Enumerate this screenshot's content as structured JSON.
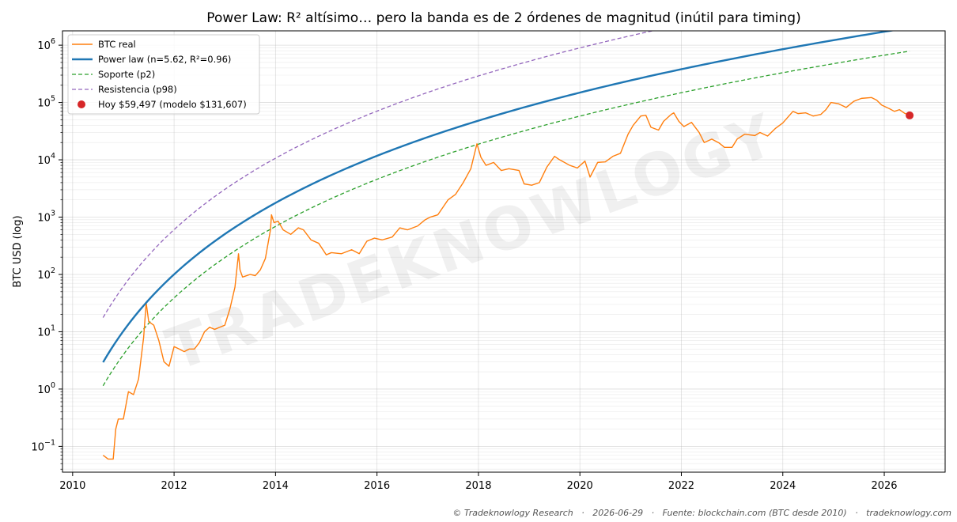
{
  "chart_data": {
    "type": "line",
    "title": "Power Law: R² altísimo… pero la banda es de 2 órdenes de magnitud (inútil para timing)",
    "xlabel": "",
    "ylabel": "BTC USD (log)",
    "xlim": [
      2009.8,
      2027.2
    ],
    "ylim_log10": [
      -1.45,
      6.25
    ],
    "y_scale": "log",
    "x_ticks": [
      2010,
      2012,
      2014,
      2016,
      2018,
      2020,
      2022,
      2024,
      2026
    ],
    "y_ticks": [
      {
        "exp": -1,
        "label": "−1"
      },
      {
        "exp": 0,
        "label": "0"
      },
      {
        "exp": 1,
        "label": "1"
      },
      {
        "exp": 2,
        "label": "2"
      },
      {
        "exp": 3,
        "label": "3"
      },
      {
        "exp": 4,
        "label": "4"
      },
      {
        "exp": 5,
        "label": "5"
      },
      {
        "exp": 6,
        "label": "6"
      }
    ],
    "y_tick_base": "10",
    "grid": true,
    "legend_position": "top-left",
    "power_law": {
      "intercept_log10": -0.68,
      "x_start": 2010.6,
      "x_end": 2026.5
    },
    "series": [
      {
        "name": "BTC real",
        "color": "#ff7f0e",
        "style": "solid",
        "points": [
          [
            2010.6,
            0.07
          ],
          [
            2010.7,
            0.06
          ],
          [
            2010.8,
            0.06
          ],
          [
            2010.85,
            0.2
          ],
          [
            2010.9,
            0.3
          ],
          [
            2011.0,
            0.3
          ],
          [
            2011.1,
            0.9
          ],
          [
            2011.2,
            0.8
          ],
          [
            2011.3,
            1.5
          ],
          [
            2011.4,
            8
          ],
          [
            2011.45,
            32
          ],
          [
            2011.5,
            15
          ],
          [
            2011.6,
            13
          ],
          [
            2011.7,
            7
          ],
          [
            2011.8,
            3
          ],
          [
            2011.9,
            2.5
          ],
          [
            2012.0,
            5.5
          ],
          [
            2012.1,
            5
          ],
          [
            2012.2,
            4.5
          ],
          [
            2012.3,
            5
          ],
          [
            2012.4,
            5
          ],
          [
            2012.5,
            6.5
          ],
          [
            2012.6,
            10
          ],
          [
            2012.7,
            12
          ],
          [
            2012.8,
            11
          ],
          [
            2012.9,
            12
          ],
          [
            2013.0,
            13
          ],
          [
            2013.1,
            25
          ],
          [
            2013.2,
            60
          ],
          [
            2013.27,
            230
          ],
          [
            2013.3,
            120
          ],
          [
            2013.35,
            90
          ],
          [
            2013.5,
            100
          ],
          [
            2013.6,
            95
          ],
          [
            2013.7,
            120
          ],
          [
            2013.8,
            190
          ],
          [
            2013.9,
            600
          ],
          [
            2013.92,
            1100
          ],
          [
            2013.97,
            800
          ],
          [
            2014.05,
            850
          ],
          [
            2014.15,
            600
          ],
          [
            2014.3,
            500
          ],
          [
            2014.45,
            650
          ],
          [
            2014.55,
            600
          ],
          [
            2014.7,
            400
          ],
          [
            2014.85,
            350
          ],
          [
            2015.0,
            220
          ],
          [
            2015.1,
            240
          ],
          [
            2015.3,
            230
          ],
          [
            2015.5,
            270
          ],
          [
            2015.65,
            230
          ],
          [
            2015.8,
            380
          ],
          [
            2015.95,
            430
          ],
          [
            2016.1,
            400
          ],
          [
            2016.3,
            450
          ],
          [
            2016.45,
            650
          ],
          [
            2016.6,
            600
          ],
          [
            2016.8,
            700
          ],
          [
            2016.95,
            900
          ],
          [
            2017.05,
            1000
          ],
          [
            2017.2,
            1100
          ],
          [
            2017.4,
            2000
          ],
          [
            2017.55,
            2500
          ],
          [
            2017.7,
            4000
          ],
          [
            2017.85,
            7000
          ],
          [
            2017.97,
            19000
          ],
          [
            2018.05,
            11000
          ],
          [
            2018.15,
            8000
          ],
          [
            2018.3,
            9000
          ],
          [
            2018.45,
            6500
          ],
          [
            2018.6,
            7000
          ],
          [
            2018.8,
            6500
          ],
          [
            2018.9,
            3800
          ],
          [
            2019.05,
            3600
          ],
          [
            2019.2,
            4000
          ],
          [
            2019.35,
            7500
          ],
          [
            2019.5,
            11500
          ],
          [
            2019.6,
            10000
          ],
          [
            2019.8,
            8000
          ],
          [
            2019.95,
            7200
          ],
          [
            2020.1,
            9500
          ],
          [
            2020.2,
            5000
          ],
          [
            2020.35,
            9000
          ],
          [
            2020.5,
            9200
          ],
          [
            2020.65,
            11500
          ],
          [
            2020.8,
            13000
          ],
          [
            2020.95,
            28000
          ],
          [
            2021.05,
            40000
          ],
          [
            2021.2,
            58000
          ],
          [
            2021.3,
            60000
          ],
          [
            2021.4,
            37000
          ],
          [
            2021.55,
            33000
          ],
          [
            2021.65,
            47000
          ],
          [
            2021.8,
            62000
          ],
          [
            2021.85,
            66000
          ],
          [
            2021.95,
            47000
          ],
          [
            2022.05,
            38000
          ],
          [
            2022.2,
            45000
          ],
          [
            2022.35,
            30000
          ],
          [
            2022.45,
            20000
          ],
          [
            2022.6,
            23000
          ],
          [
            2022.75,
            19500
          ],
          [
            2022.85,
            16500
          ],
          [
            2023.0,
            16500
          ],
          [
            2023.1,
            23000
          ],
          [
            2023.25,
            28000
          ],
          [
            2023.45,
            26500
          ],
          [
            2023.55,
            30000
          ],
          [
            2023.7,
            26000
          ],
          [
            2023.85,
            35000
          ],
          [
            2024.0,
            44000
          ],
          [
            2024.2,
            70000
          ],
          [
            2024.3,
            64000
          ],
          [
            2024.45,
            66000
          ],
          [
            2024.6,
            58000
          ],
          [
            2024.75,
            62000
          ],
          [
            2024.85,
            75000
          ],
          [
            2024.95,
            100000
          ],
          [
            2025.1,
            95000
          ],
          [
            2025.25,
            82000
          ],
          [
            2025.4,
            105000
          ],
          [
            2025.55,
            118000
          ],
          [
            2025.75,
            122000
          ],
          [
            2025.85,
            110000
          ],
          [
            2025.95,
            90000
          ],
          [
            2026.1,
            78000
          ],
          [
            2026.2,
            70000
          ],
          [
            2026.3,
            75000
          ],
          [
            2026.4,
            65000
          ],
          [
            2026.5,
            59497
          ]
        ]
      },
      {
        "name": "Power law (n=5.62, R²=0.96)",
        "color": "#1f77b4",
        "style": "solid",
        "exponent": 5.62
      },
      {
        "name": "Soporte (p2)",
        "color": "#2ca02c",
        "style": "dashed",
        "offset_log10": -0.41
      },
      {
        "name": "Resistencia (p98)",
        "color": "#9467bd",
        "style": "dashed",
        "offset_log10": 0.78
      }
    ],
    "today_marker": {
      "label": "Hoy $59,497 (modelo $131,607)",
      "x": 2026.5,
      "y": 59497,
      "model": 131607,
      "color": "#d62728"
    }
  },
  "watermark": "TRADEKNOWLOGY",
  "footer": "© Tradeknowlogy Research   ·   2026-06-29   ·   Fuente: blockchain.com (BTC desde 2010)   ·   tradeknowlogy.com"
}
